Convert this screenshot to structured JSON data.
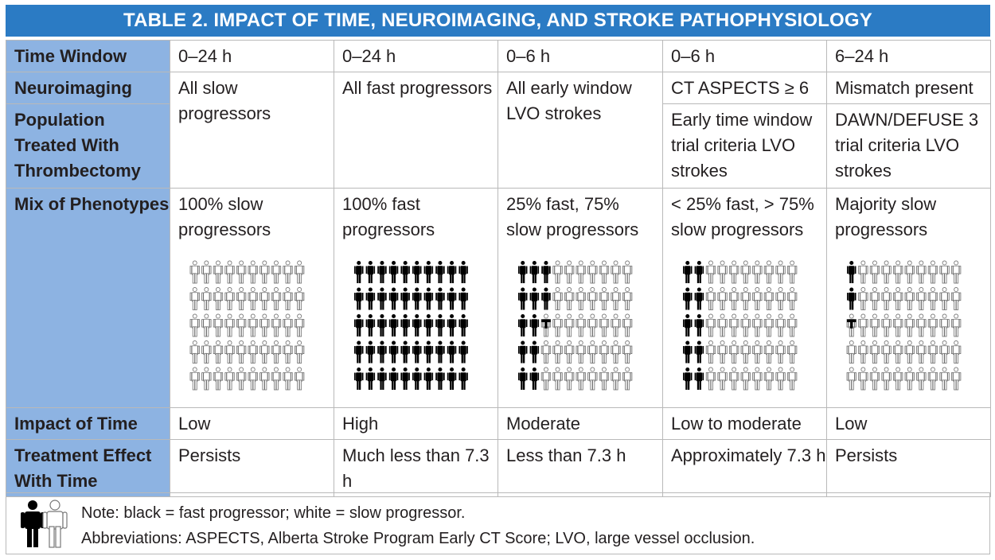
{
  "title": "TABLE 2.  IMPACT OF TIME, NEUROIMAGING, AND STROKE PATHOPHYSIOLOGY",
  "row_labels": {
    "time_window": "Time Window",
    "neuroimaging": "Neuroimaging",
    "population": "Population Treated With Thrombectomy",
    "mix": "Mix of Phenotypes",
    "impact": "Impact of Time",
    "effect": "Treatment Effect With Time"
  },
  "columns": [
    {
      "time_window": "0–24 h",
      "neuroimaging": "All slow progressors",
      "population": "",
      "mix": "100% slow progressors",
      "fast_count": 0,
      "impact": "Low",
      "effect": "Persists"
    },
    {
      "time_window": "0–24 h",
      "neuroimaging": "All fast progressors",
      "population": "",
      "mix": "100% fast progressors",
      "fast_count": 50,
      "impact": "High",
      "effect": "Much less than 7.3 h"
    },
    {
      "time_window": "0–6 h",
      "neuroimaging": "All early window LVO strokes",
      "population": "",
      "mix": "25% fast, 75% slow progressors",
      "fast_count": 12.5,
      "impact": "Moderate",
      "effect": "Less than 7.3 h"
    },
    {
      "time_window": "0–6 h",
      "neuroimaging": "CT ASPECTS ≥ 6",
      "population": "Early time window trial criteria LVO strokes",
      "mix": "< 25% fast, > 75% slow progressors",
      "fast_count": 10,
      "impact": "Low to moderate",
      "effect": "Approximately 7.3 h"
    },
    {
      "time_window": "6–24 h",
      "neuroimaging": "Mismatch present",
      "population": "DAWN/DEFUSE 3 trial criteria LVO strokes",
      "mix": "Majority slow progressors",
      "fast_count": 2.5,
      "impact": "Low",
      "effect": "Persists"
    }
  ],
  "note": {
    "line1": "Note: black = fast progressor; white = slow progressor.",
    "line2": "Abbreviations: ASPECTS, Alberta Stroke Program Early CT Score; LVO, large vessel occlusion."
  },
  "colors": {
    "header_blue": "#2b7bc4",
    "label_blue": "#8db3e2",
    "fast": "#000000",
    "slow": "#ffffff"
  },
  "icons": {
    "fast_person": "person-black-icon",
    "slow_person": "person-outline-icon"
  }
}
